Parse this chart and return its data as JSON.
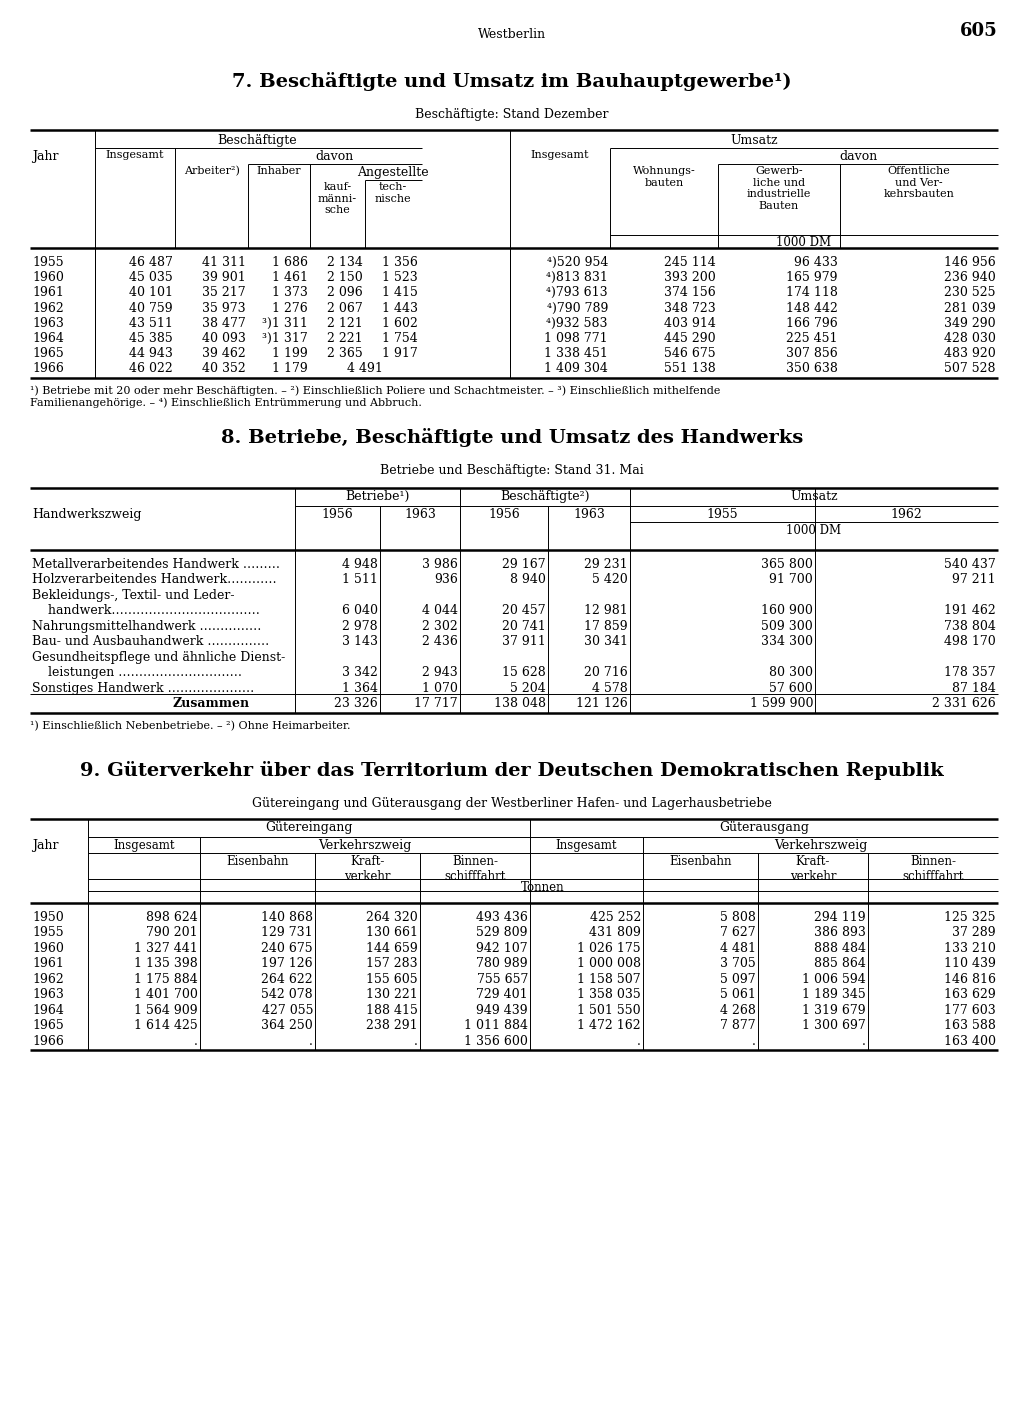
{
  "page_header": "Westberlin",
  "page_number": "605",
  "table7_title": "7. Beschäftigte und Umsatz im Bauhauptgewerbe¹)",
  "table7_subtitle": "Beschäftigte: Stand Dezember",
  "table7_data": [
    [
      "1955",
      "46 487",
      "41 311",
      "1 686",
      "2 134",
      "1 356",
      "⁴)520 954",
      "245 114",
      "96 433",
      "146 956"
    ],
    [
      "1960",
      "45 035",
      "39 901",
      "1 461",
      "2 150",
      "1 523",
      "⁴)813 831",
      "393 200",
      "165 979",
      "236 940"
    ],
    [
      "1961",
      "40 101",
      "35 217",
      "1 373",
      "2 096",
      "1 415",
      "⁴)793 613",
      "374 156",
      "174 118",
      "230 525"
    ],
    [
      "1962",
      "40 759",
      "35 973",
      "1 276",
      "2 067",
      "1 443",
      "⁴)790 789",
      "348 723",
      "148 442",
      "281 039"
    ],
    [
      "1963",
      "43 511",
      "38 477",
      "³)1 311",
      "2 121",
      "1 602",
      "⁴)932 583",
      "403 914",
      "166 796",
      "349 290"
    ],
    [
      "1964",
      "45 385",
      "40 093",
      "³)1 317",
      "2 221",
      "1 754",
      "1 098 771",
      "445 290",
      "225 451",
      "428 030"
    ],
    [
      "1965",
      "44 943",
      "39 462",
      "1 199",
      "2 365",
      "1 917",
      "1 338 451",
      "546 675",
      "307 856",
      "483 920"
    ],
    [
      "1966",
      "46 022",
      "40 352",
      "1 179",
      "4 491",
      "",
      "1 409 304",
      "551 138",
      "350 638",
      "507 528"
    ]
  ],
  "table7_fn": "¹) Betriebe mit 20 oder mehr Beschäftigten. – ²) Einschließlich Poliere und Schachtmeister. – ³) Einschließlich mithelfende\nFamilienangehörige. – ⁴) Einschließlich Entrümmerung und Abbruch.",
  "table8_title": "8. Betriebe, Beschäftigte und Umsatz des Handwerks",
  "table8_subtitle": "Betriebe und Beschäftigte: Stand 31. Mai",
  "table8_data": [
    [
      "Metallverarbeitendes Handwerk ………",
      "4 948",
      "3 986",
      "29 167",
      "29 231",
      "365 800",
      "540 437"
    ],
    [
      "Holzverarbeitendes Handwerk…………",
      "1 511",
      "936",
      "8 940",
      "5 420",
      "91 700",
      "97 211"
    ],
    [
      "Bekleidungs-, Textil- und Leder-",
      "",
      "",
      "",
      "",
      "",
      ""
    ],
    [
      "    handwerk………………………………",
      "6 040",
      "4 044",
      "20 457",
      "12 981",
      "160 900",
      "191 462"
    ],
    [
      "Nahrungsmittelhandwerk ……………",
      "2 978",
      "2 302",
      "20 741",
      "17 859",
      "509 300",
      "738 804"
    ],
    [
      "Bau- und Ausbauhandwerk ……………",
      "3 143",
      "2 436",
      "37 911",
      "30 341",
      "334 300",
      "498 170"
    ],
    [
      "Gesundheitspflege und ähnliche Dienst-",
      "",
      "",
      "",
      "",
      "",
      ""
    ],
    [
      "    leistungen …………………………",
      "3 342",
      "2 943",
      "15 628",
      "20 716",
      "80 300",
      "178 357"
    ],
    [
      "Sonstiges Handwerk …………………",
      "1 364",
      "1 070",
      "5 204",
      "4 578",
      "57 600",
      "87 184"
    ],
    [
      "Zusammen",
      "23 326",
      "17 717",
      "138 048",
      "121 126",
      "1 599 900",
      "2 331 626"
    ]
  ],
  "table8_fn": "¹) Einschließlich Nebenbetriebe. – ²) Ohne Heimarbeiter.",
  "table9_title": "9. Güterverkehr über das Territorium der Deutschen Demokratischen Republik",
  "table9_subtitle": "Gütereingang und Güterausgang der Westberliner Hafen- und Lagerhausbetriebe",
  "table9_data": [
    [
      "1950",
      "898 624",
      "140 868",
      "264 320",
      "493 436",
      "425 252",
      "5 808",
      "294 119",
      "125 325"
    ],
    [
      "1955",
      "790 201",
      "129 731",
      "130 661",
      "529 809",
      "431 809",
      "7 627",
      "386 893",
      "37 289"
    ],
    [
      "1960",
      "1 327 441",
      "240 675",
      "144 659",
      "942 107",
      "1 026 175",
      "4 481",
      "888 484",
      "133 210"
    ],
    [
      "1961",
      "1 135 398",
      "197 126",
      "157 283",
      "780 989",
      "1 000 008",
      "3 705",
      "885 864",
      "110 439"
    ],
    [
      "1962",
      "1 175 884",
      "264 622",
      "155 605",
      "755 657",
      "1 158 507",
      "5 097",
      "1 006 594",
      "146 816"
    ],
    [
      "1963",
      "1 401 700",
      "542 078",
      "130 221",
      "729 401",
      "1 358 035",
      "5 061",
      "1 189 345",
      "163 629"
    ],
    [
      "1964",
      "1 564 909",
      "427 055",
      "188 415",
      "949 439",
      "1 501 550",
      "4 268",
      "1 319 679",
      "177 603"
    ],
    [
      "1965",
      "1 614 425",
      "364 250",
      "238 291",
      "1 011 884",
      "1 472 162",
      "7 877",
      "1 300 697",
      "163 588"
    ],
    [
      "1966",
      ".",
      ".",
      ".",
      "1 356 600",
      ".",
      ".",
      ".",
      "163 400"
    ]
  ]
}
